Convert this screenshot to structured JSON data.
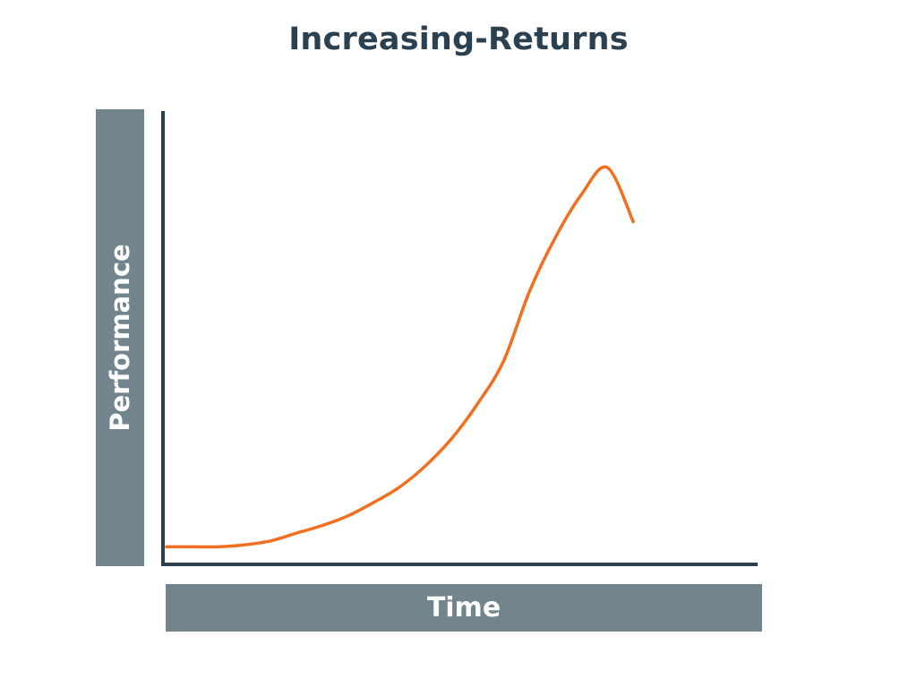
{
  "chart_data": {
    "type": "line",
    "title": "Increasing-Returns",
    "xlabel": "Time",
    "ylabel": "Performance",
    "xlim": [
      0,
      10
    ],
    "ylim": [
      0,
      10
    ],
    "grid": false,
    "ticks": false,
    "series": [
      {
        "x": [
          0,
          0.5,
          1.0,
          1.5,
          2.0,
          2.5,
          3.0,
          3.5,
          4.0,
          4.5,
          5.0,
          5.5,
          6.0,
          6.5,
          7.0,
          7.5,
          8.0,
          8.5,
          9.0
        ],
        "values": [
          0.2,
          0.2,
          0.2,
          0.25,
          0.35,
          0.55,
          0.75,
          1.0,
          1.35,
          1.75,
          2.3,
          3.0,
          3.9,
          5.0,
          6.8,
          8.2,
          9.3,
          10.0,
          8.6
        ]
      }
    ]
  },
  "colors": {
    "title": "#2b4050",
    "axis": "#2b4050",
    "label_box": "#72848d",
    "label_text": "#ffffff",
    "line": "#f26f21"
  }
}
